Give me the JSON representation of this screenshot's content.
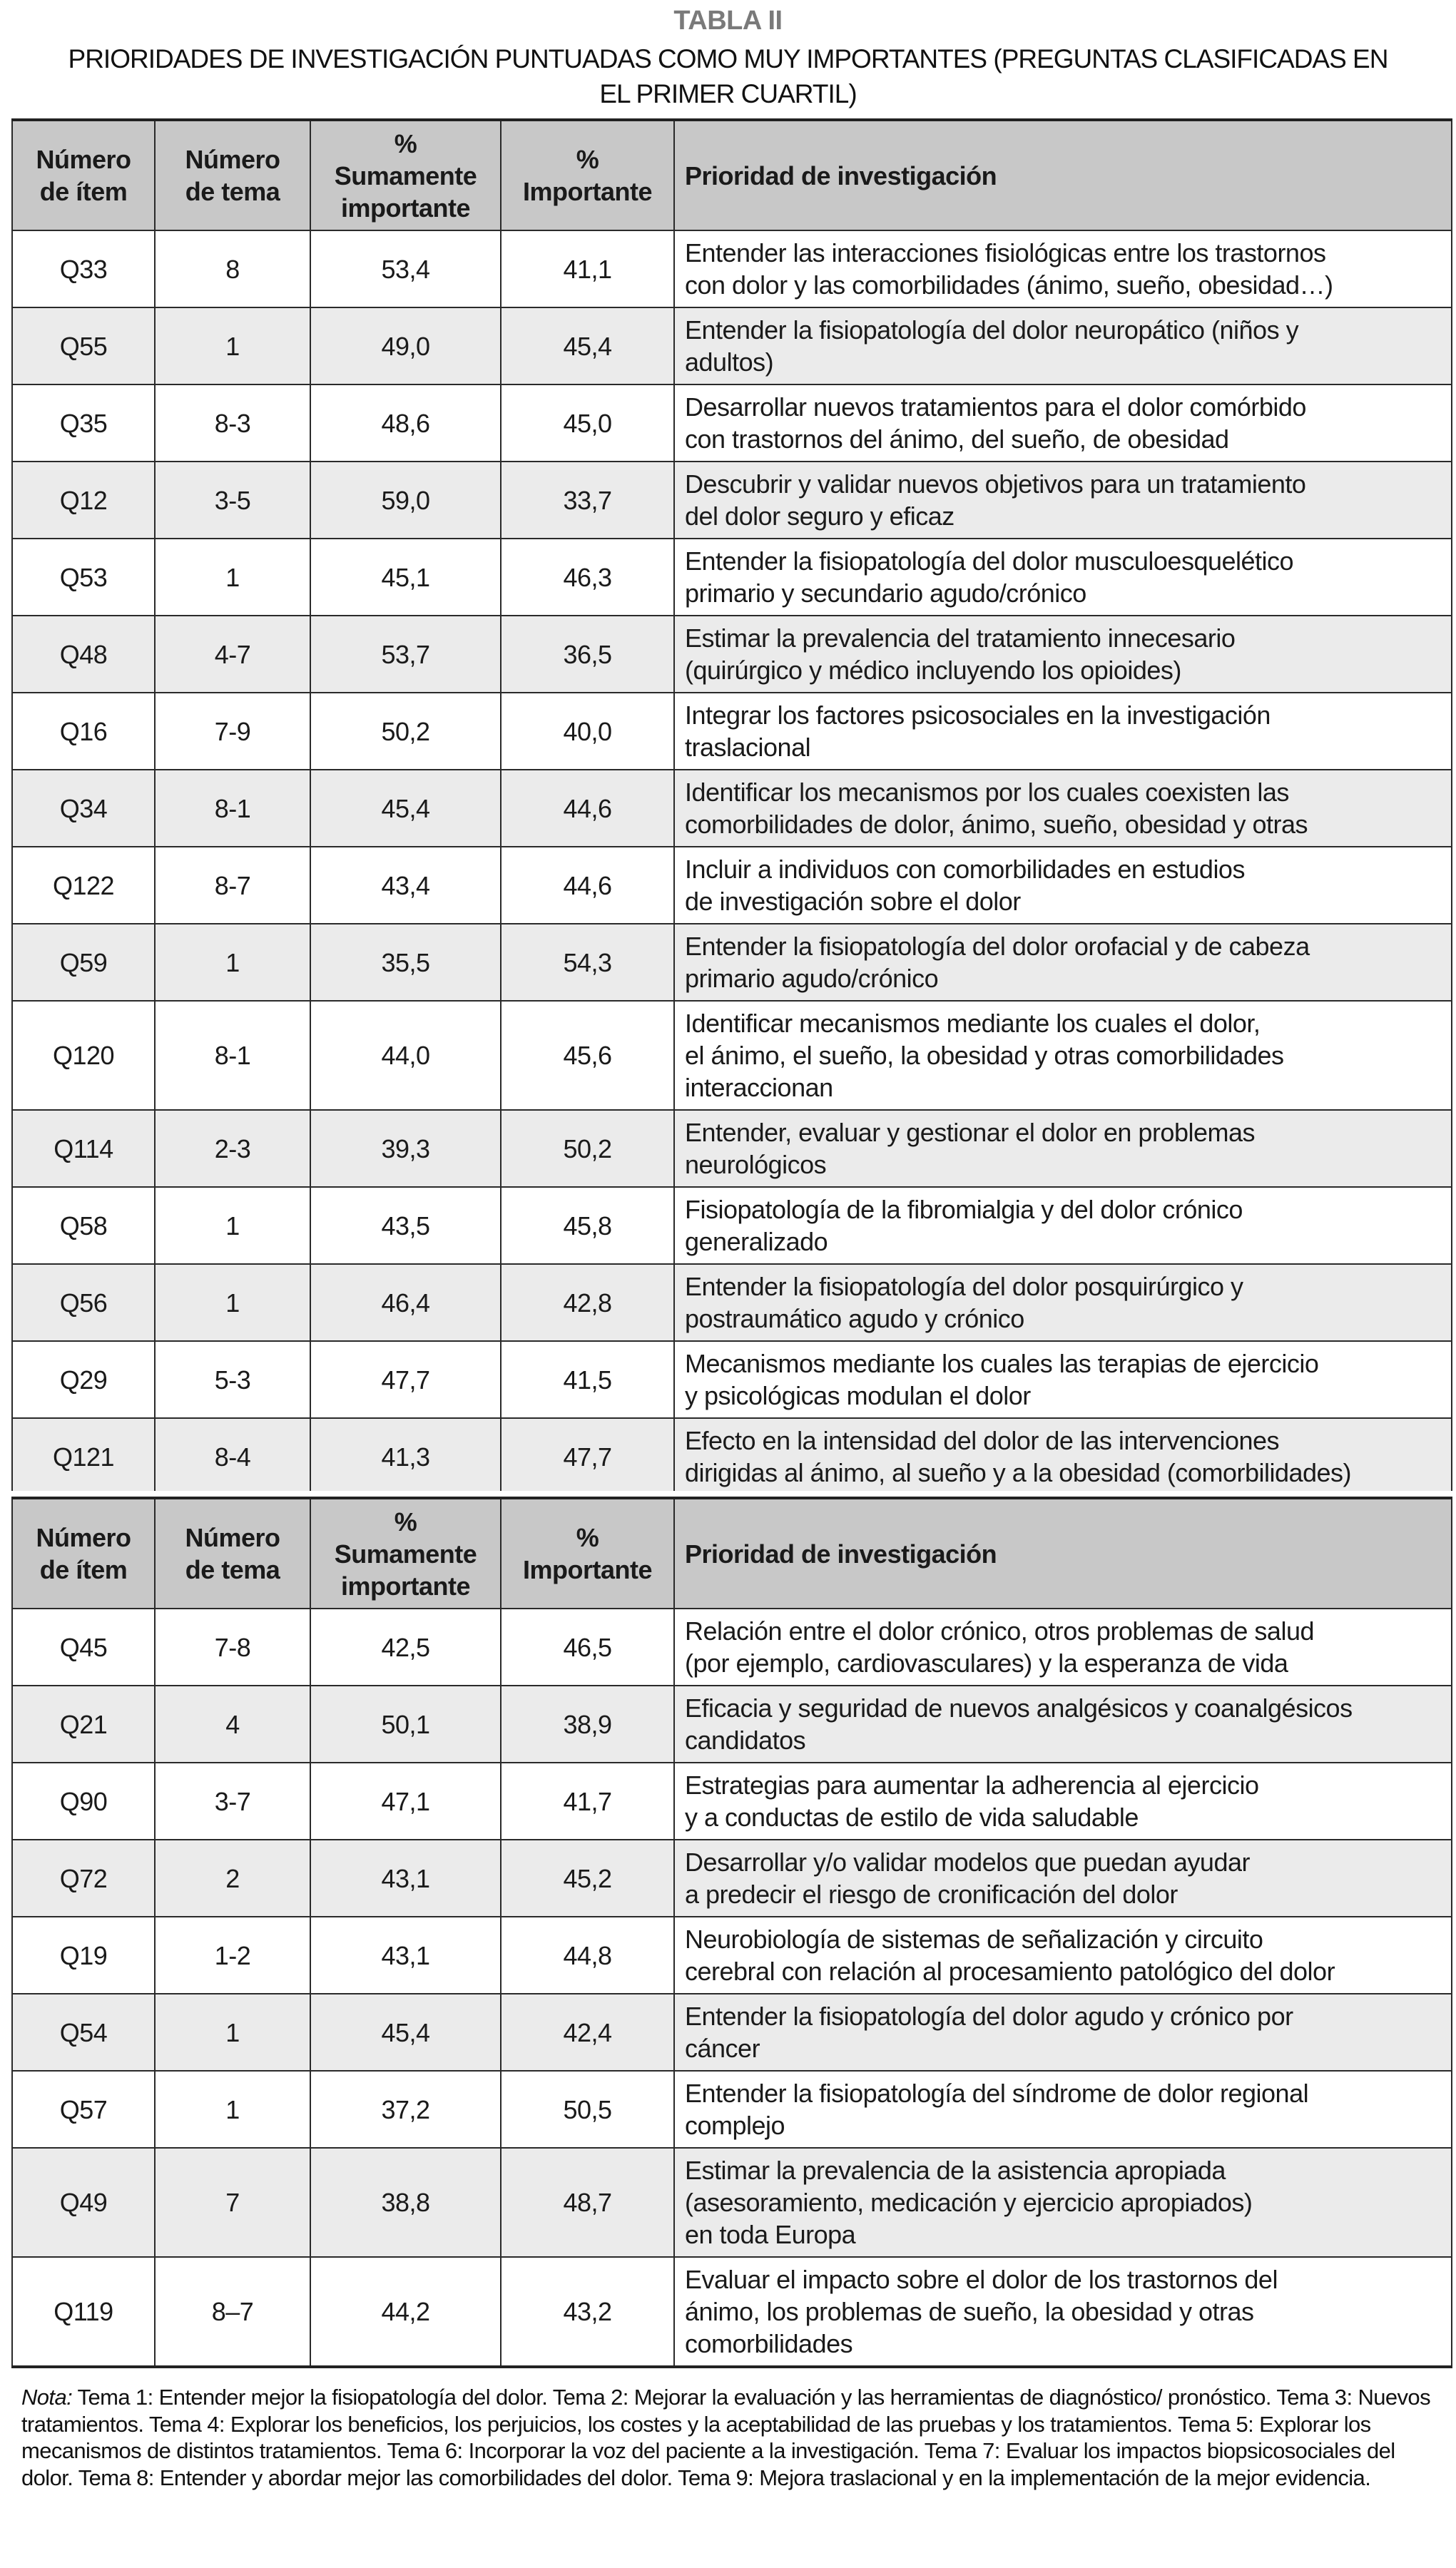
{
  "title": "TABLA II",
  "subtitle": "PRIORIDADES DE INVESTIGACIÓN PUNTUADAS COMO MUY IMPORTANTES (PREGUNTAS CLASIFICADAS EN\nEL PRIMER CUARTIL)",
  "headers": [
    "Número\nde ítem",
    "Número\nde tema",
    "%\nSumamente\nimportante",
    "%\nImportante",
    "Prioridad de investigación"
  ],
  "table1": [
    {
      "item": "Q33",
      "tema": "8",
      "sum": "53,4",
      "imp": "41,1",
      "prioridad": "Entender las interacciones fisiológicas entre los trastornos\ncon dolor y las comorbilidades (ánimo, sueño, obesidad…)"
    },
    {
      "item": "Q55",
      "tema": "1",
      "sum": "49,0",
      "imp": "45,4",
      "prioridad": "Entender la fisiopatología del dolor neuropático (niños y\nadultos)"
    },
    {
      "item": "Q35",
      "tema": "8-3",
      "sum": "48,6",
      "imp": "45,0",
      "prioridad": "Desarrollar nuevos tratamientos para el dolor comórbido\ncon trastornos del ánimo, del sueño, de obesidad"
    },
    {
      "item": "Q12",
      "tema": "3-5",
      "sum": "59,0",
      "imp": "33,7",
      "prioridad": "Descubrir y validar nuevos objetivos para un tratamiento\ndel dolor seguro y eficaz"
    },
    {
      "item": "Q53",
      "tema": "1",
      "sum": "45,1",
      "imp": "46,3",
      "prioridad": "Entender la fisiopatología del dolor musculoesquelético\nprimario y secundario agudo/crónico"
    },
    {
      "item": "Q48",
      "tema": "4-7",
      "sum": "53,7",
      "imp": "36,5",
      "prioridad": "Estimar la prevalencia del tratamiento innecesario\n(quirúrgico y médico incluyendo los opioides)"
    },
    {
      "item": "Q16",
      "tema": "7-9",
      "sum": "50,2",
      "imp": "40,0",
      "prioridad": "Integrar los factores psicosociales en la investigación\ntraslacional"
    },
    {
      "item": "Q34",
      "tema": "8-1",
      "sum": "45,4",
      "imp": "44,6",
      "prioridad": "Identificar los mecanismos por los cuales coexisten las\ncomorbilidades de dolor, ánimo, sueño, obesidad y otras"
    },
    {
      "item": "Q122",
      "tema": "8-7",
      "sum": "43,4",
      "imp": "44,6",
      "prioridad": "Incluir a individuos con comorbilidades en estudios\nde investigación sobre el dolor"
    },
    {
      "item": "Q59",
      "tema": "1",
      "sum": "35,5",
      "imp": "54,3",
      "prioridad": "Entender la fisiopatología del dolor orofacial y de cabeza\nprimario agudo/crónico"
    },
    {
      "item": "Q120",
      "tema": "8-1",
      "sum": "44,0",
      "imp": "45,6",
      "prioridad": "Identificar mecanismos mediante los cuales el dolor,\nel ánimo, el sueño, la obesidad y otras comorbilidades\ninteraccionan"
    },
    {
      "item": "Q114",
      "tema": "2-3",
      "sum": "39,3",
      "imp": "50,2",
      "prioridad": "Entender, evaluar y gestionar el dolor en problemas\nneurológicos"
    },
    {
      "item": "Q58",
      "tema": "1",
      "sum": "43,5",
      "imp": "45,8",
      "prioridad": "Fisiopatología de la fibromialgia y del dolor crónico\ngeneralizado"
    },
    {
      "item": "Q56",
      "tema": "1",
      "sum": "46,4",
      "imp": "42,8",
      "prioridad": "Entender la fisiopatología del dolor posquirúrgico y\npostraumático agudo y crónico"
    },
    {
      "item": "Q29",
      "tema": "5-3",
      "sum": "47,7",
      "imp": "41,5",
      "prioridad": "Mecanismos mediante los cuales las terapias de ejercicio\ny psicológicas modulan el dolor"
    },
    {
      "item": "Q121",
      "tema": "8-4",
      "sum": "41,3",
      "imp": "47,7",
      "prioridad": "Efecto en la intensidad del dolor de las intervenciones\ndirigidas al ánimo, al sueño y a la obesidad (comorbilidades)"
    }
  ],
  "table2": [
    {
      "item": "Q45",
      "tema": "7-8",
      "sum": "42,5",
      "imp": "46,5",
      "prioridad": "Relación entre el dolor crónico, otros problemas de salud\n(por ejemplo, cardiovasculares) y la esperanza de vida"
    },
    {
      "item": "Q21",
      "tema": "4",
      "sum": "50,1",
      "imp": "38,9",
      "prioridad": "Eficacia y seguridad de nuevos analgésicos y coanalgésicos\ncandidatos"
    },
    {
      "item": "Q90",
      "tema": "3-7",
      "sum": "47,1",
      "imp": "41,7",
      "prioridad": "Estrategias para aumentar la adherencia al ejercicio\ny a conductas de estilo de vida saludable"
    },
    {
      "item": "Q72",
      "tema": "2",
      "sum": "43,1",
      "imp": "45,2",
      "prioridad": "Desarrollar y/o validar modelos que puedan ayudar\na predecir el riesgo de cronificación del dolor"
    },
    {
      "item": "Q19",
      "tema": "1-2",
      "sum": "43,1",
      "imp": "44,8",
      "prioridad": "Neurobiología de sistemas de señalización y circuito\ncerebral con relación al procesamiento patológico del dolor"
    },
    {
      "item": "Q54",
      "tema": "1",
      "sum": "45,4",
      "imp": "42,4",
      "prioridad": "Entender la fisiopatología del dolor agudo y crónico por\ncáncer"
    },
    {
      "item": "Q57",
      "tema": "1",
      "sum": "37,2",
      "imp": "50,5",
      "prioridad": "Entender la fisiopatología del síndrome de dolor regional\ncomplejo"
    },
    {
      "item": "Q49",
      "tema": "7",
      "sum": "38,8",
      "imp": "48,7",
      "prioridad": "Estimar la prevalencia de la asistencia apropiada\n(asesoramiento, medicación y ejercicio apropiados)\nen toda Europa"
    },
    {
      "item": "Q119",
      "tema": "8–7",
      "sum": "44,2",
      "imp": "43,2",
      "prioridad": "Evaluar el impacto sobre el dolor de los trastornos del\nánimo, los problemas de sueño, la obesidad y otras\ncomorbilidades"
    }
  ],
  "note": {
    "label": "Nota:",
    "text": " Tema 1: Entender mejor la fisiopatología del dolor. Tema 2: Mejorar la evaluación y las herramientas de diagnóstico/ pronóstico. Tema 3: Nuevos tratamientos. Tema 4: Explorar los beneficios, los perjuicios, los costes y la aceptabilidad de las pruebas y los tratamientos. Tema 5: Explorar los mecanismos de distintos tratamientos. Tema 6: Incorporar la voz del paciente a la investigación. Tema 7: Evaluar los impactos biopsicosociales del dolor. Tema 8: Entender y abordar mejor las comorbilidades del dolor. Tema 9: Mejora traslacional y en la implementación de la mejor evidencia."
  }
}
